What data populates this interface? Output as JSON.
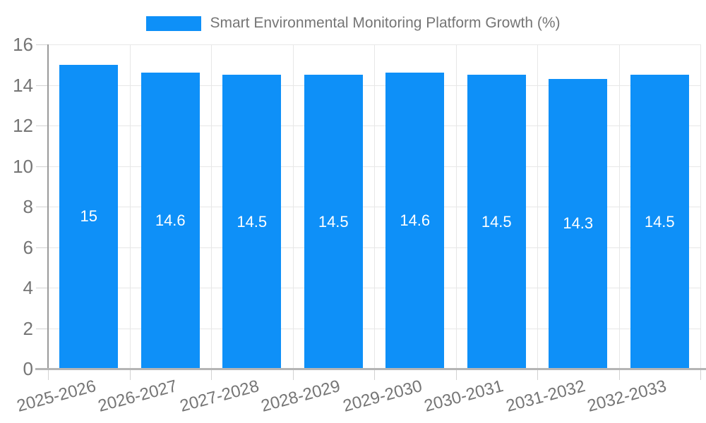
{
  "chart_data": {
    "type": "bar",
    "title": "Smart Environmental Monitoring Platform Growth (%)",
    "categories": [
      "2025-2026",
      "2026-2027",
      "2027-2028",
      "2028-2029",
      "2029-2030",
      "2030-2031",
      "2031-2032",
      "2032-2033"
    ],
    "values": [
      15,
      14.6,
      14.5,
      14.5,
      14.6,
      14.5,
      14.3,
      14.5
    ],
    "xlabel": "",
    "ylabel": "",
    "ylim": [
      0,
      16
    ],
    "yticks": [
      0,
      2,
      4,
      6,
      8,
      10,
      12,
      14,
      16
    ],
    "grid": true,
    "legend_position": "top-center",
    "bar_label_position": "inside-middle",
    "xtick_rotation_deg": -15,
    "colors": {
      "bar": "#0e90f8",
      "bar_label_text": "#ffffff",
      "axis_text": "#757575",
      "legend_text": "#757575",
      "gridline": "#e7e7e7",
      "tick": "#d2d2d2",
      "axis_line_left": "#9a9a9a",
      "axis_line_bottom": "#b5b5b5",
      "background": "#ffffff"
    }
  }
}
